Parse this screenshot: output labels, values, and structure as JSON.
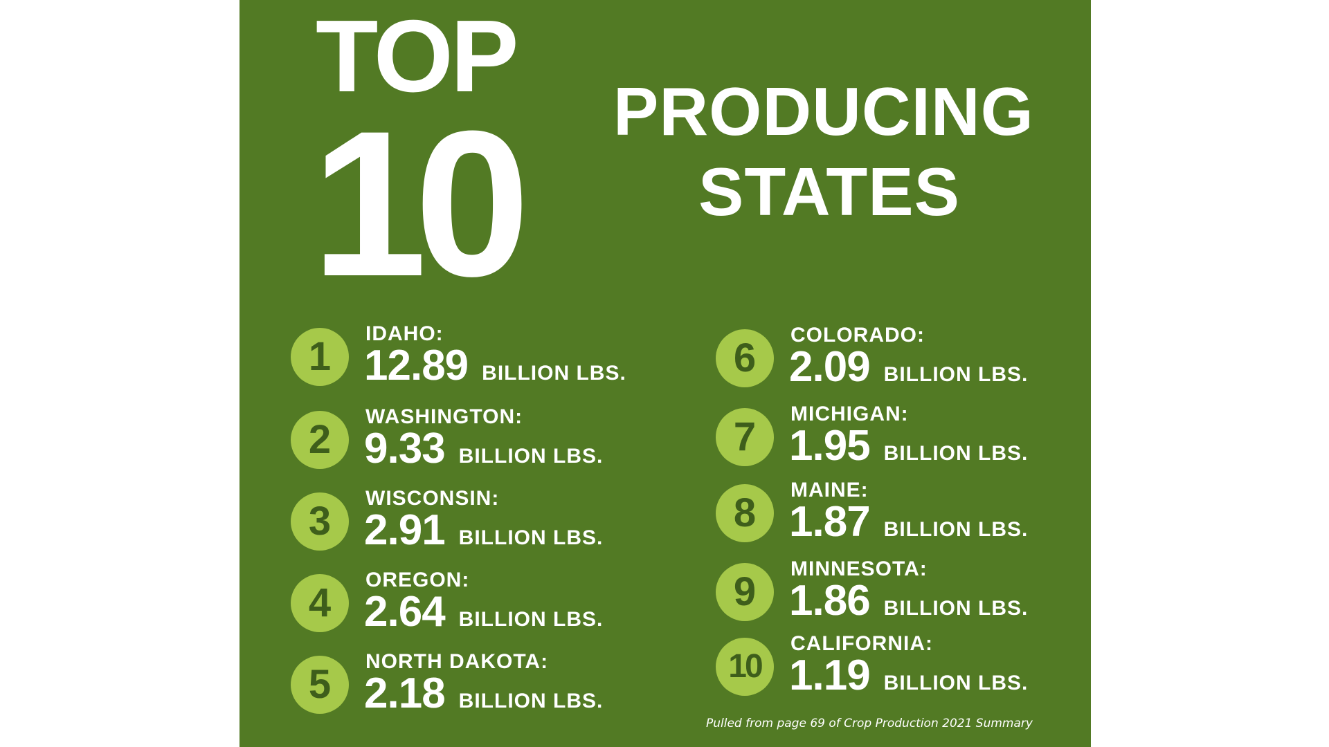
{
  "heading": {
    "top": "TOP",
    "ten": "10",
    "producing": "PRODUCING",
    "states": "STATES"
  },
  "colors": {
    "panel_background": "#527a24",
    "badge_background": "#a6c94a",
    "badge_text": "#3e5e1b",
    "text": "#ffffff"
  },
  "rankings": [
    {
      "rank": "1",
      "state": "IDAHO:",
      "value": "12.89",
      "unit": "BILLION LBS."
    },
    {
      "rank": "2",
      "state": "WASHINGTON:",
      "value": "9.33",
      "unit": "BILLION LBS."
    },
    {
      "rank": "3",
      "state": "WISCONSIN:",
      "value": "2.91",
      "unit": "BILLION LBS."
    },
    {
      "rank": "4",
      "state": "OREGON:",
      "value": "2.64",
      "unit": "BILLION LBS."
    },
    {
      "rank": "5",
      "state": "NORTH DAKOTA:",
      "value": "2.18",
      "unit": "BILLION LBS."
    },
    {
      "rank": "6",
      "state": "COLORADO:",
      "value": "2.09",
      "unit": "BILLION LBS."
    },
    {
      "rank": "7",
      "state": "MICHIGAN:",
      "value": "1.95",
      "unit": "BILLION LBS."
    },
    {
      "rank": "8",
      "state": "MAINE:",
      "value": "1.87",
      "unit": "BILLION LBS."
    },
    {
      "rank": "9",
      "state": "MINNESOTA:",
      "value": "1.86",
      "unit": "BILLION LBS."
    },
    {
      "rank": "10",
      "state": "CALIFORNIA:",
      "value": "1.19",
      "unit": "BILLION LBS."
    }
  ],
  "source_note": "Pulled from page 69 of Crop Production 2021 Summary"
}
